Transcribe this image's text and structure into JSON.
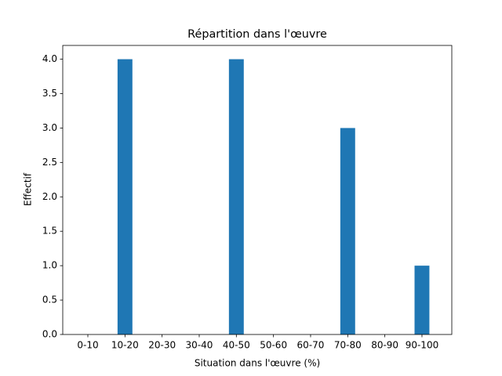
{
  "chart_data": {
    "type": "bar",
    "title": "Répartition dans l'œuvre",
    "x_label": "Situation dans l'œuvre (%)",
    "y_label": "Effectif",
    "categories": [
      "0-10",
      "10-20",
      "20-30",
      "30-40",
      "40-50",
      "50-60",
      "60-70",
      "70-80",
      "80-90",
      "90-100"
    ],
    "values": [
      0,
      4,
      0,
      0,
      4,
      0,
      0,
      3,
      0,
      1
    ],
    "color": "#1f77b4",
    "ylim": [
      0,
      4.2
    ],
    "yticks": [
      {
        "value": 0,
        "label": "0.0"
      },
      0.5,
      {
        "value": 1,
        "label": "1.0"
      },
      1.5,
      {
        "value": 2,
        "label": "2.0"
      },
      2.5,
      {
        "value": 3,
        "label": "3.0"
      },
      3.5,
      {
        "value": 4,
        "label": "4.0"
      }
    ],
    "grid": false
  }
}
